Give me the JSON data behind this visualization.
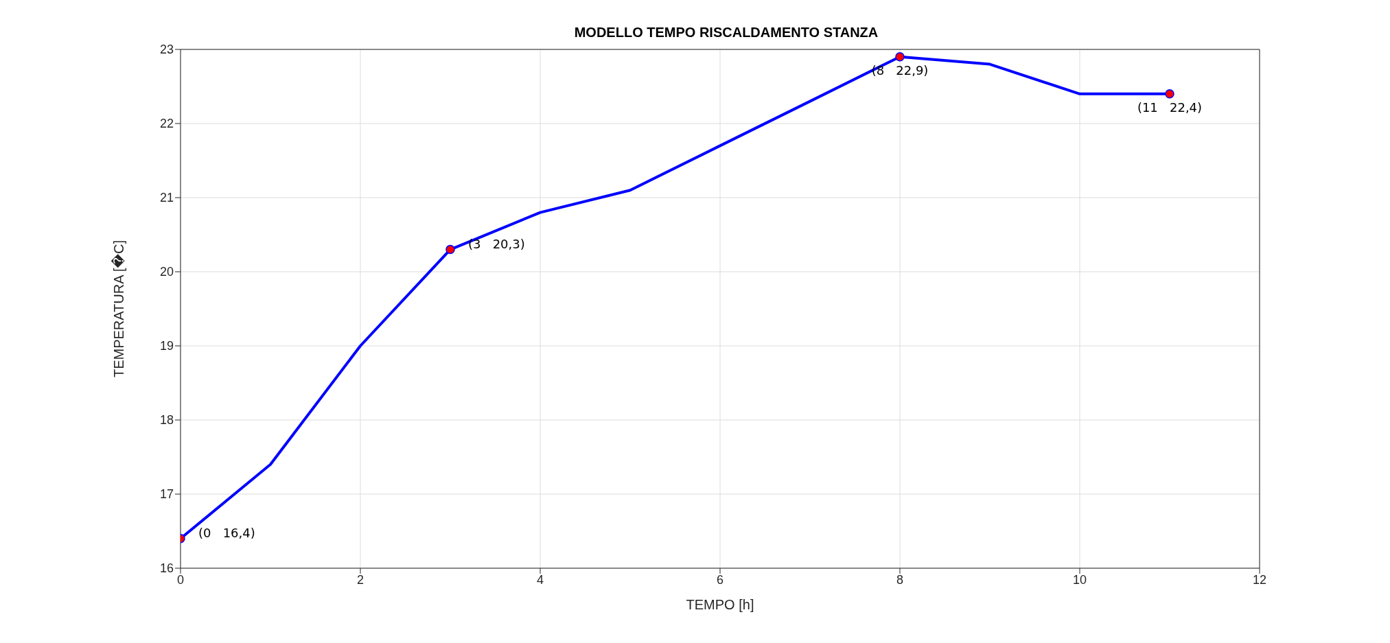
{
  "chart_data": {
    "type": "line",
    "title": "MODELLO TEMPO RISCALDAMENTO STANZA",
    "xlabel": "TEMPO [h]",
    "ylabel": "TEMPERATURA [�C]",
    "x": [
      0,
      1,
      2,
      3,
      4,
      5,
      6,
      7,
      8,
      9,
      10,
      11
    ],
    "series": [
      {
        "color": "#0000ff",
        "values": [
          16.4,
          17.4,
          19.0,
          20.3,
          20.8,
          21.1,
          21.7,
          22.3,
          22.9,
          22.8,
          22.4,
          22.4
        ]
      },
      {
        "type": "scatter",
        "color": "#ff0000",
        "marker": "circle",
        "x": [
          0,
          3,
          8,
          11
        ],
        "values": [
          16.4,
          20.3,
          22.9,
          22.4
        ]
      }
    ],
    "annotations": [
      {
        "text": "(0   16,4)",
        "x": 0,
        "y": 16.4
      },
      {
        "text": "(3   20,3)",
        "x": 3,
        "y": 20.3
      },
      {
        "text": "(8   22,9)",
        "x": 8,
        "y": 22.9
      },
      {
        "text": "(11   22,4)",
        "x": 11,
        "y": 22.4
      }
    ],
    "xlim": [
      0,
      12
    ],
    "xticks": [
      0,
      2,
      4,
      6,
      8,
      10,
      12
    ],
    "ylim": [
      16,
      23
    ],
    "yticks": [
      16,
      17,
      18,
      19,
      20,
      21,
      22,
      23
    ],
    "grid": true
  }
}
